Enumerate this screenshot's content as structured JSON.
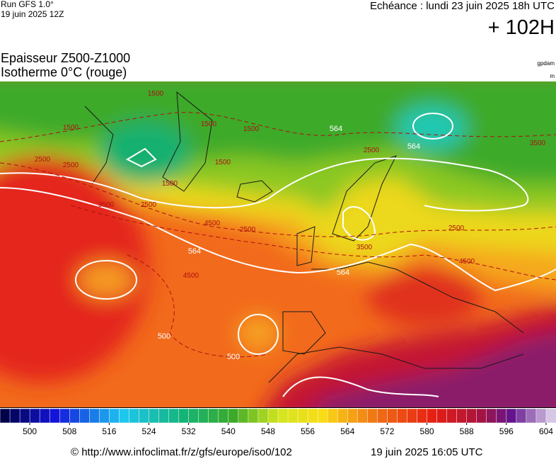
{
  "header": {
    "run": "Run GFS 1.0°",
    "run_date": "19 juin 2025 12Z",
    "valid": "Echéance : lundi 23 juin 2025 18h UTC",
    "lead": "+ 102H"
  },
  "titles": {
    "line1": "Epaisseur Z500-Z1000",
    "line2": "Isotherme 0°C (rouge)",
    "unit1": "gpdam",
    "unit2": "m"
  },
  "map": {
    "contour_labels": [
      "1500",
      "1500",
      "1500",
      "1500",
      "1500",
      "1500",
      "2500",
      "2500",
      "2500",
      "2500",
      "2500",
      "2500",
      "3500",
      "3500",
      "3500",
      "4500",
      "4500",
      "4500",
      "500",
      "500",
      "564",
      "564",
      "564",
      "564"
    ]
  },
  "colorbar": {
    "range": [
      494,
      606
    ],
    "ticks": [
      500,
      508,
      516,
      524,
      532,
      540,
      548,
      556,
      564,
      572,
      580,
      588,
      596,
      604
    ]
  },
  "footer": {
    "url": "© http://www.infoclimat.fr/z/gfs/europe/iso0/102",
    "generated": "19 juin 2025 16:05 UTC"
  }
}
